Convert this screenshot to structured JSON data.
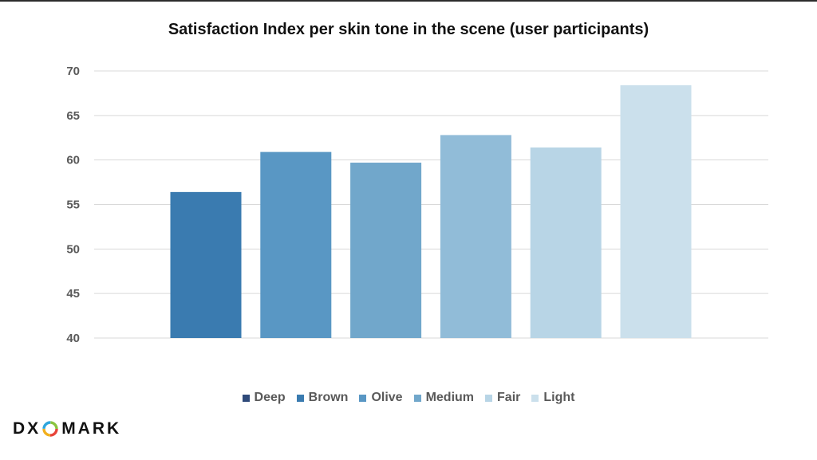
{
  "header": {
    "title": "Satisfaction Index per skin tone in the scene (user participants)"
  },
  "chart_data": {
    "type": "bar",
    "title": "Satisfaction Index per skin tone in the scene (user participants)",
    "xlabel": "",
    "ylabel": "",
    "categories": [
      "Deep",
      "Brown",
      "Olive",
      "Medium",
      "Fair",
      "Light"
    ],
    "values": [
      56.4,
      60.9,
      59.7,
      62.8,
      61.4,
      68.4
    ],
    "colors": [
      "#3a7bb0",
      "#5997c4",
      "#71a7cb",
      "#91bcd8",
      "#b8d5e6",
      "#cbe0ec"
    ],
    "ylim": [
      40,
      70
    ],
    "yticks": [
      40,
      45,
      50,
      55,
      60,
      65,
      70
    ],
    "grid": true,
    "legend_position": "bottom",
    "legend": [
      {
        "label": "Deep",
        "color": "#2f4a7a"
      },
      {
        "label": "Brown",
        "color": "#3a7bb0"
      },
      {
        "label": "Olive",
        "color": "#5997c4"
      },
      {
        "label": "Medium",
        "color": "#71a7cb"
      },
      {
        "label": "Fair",
        "color": "#b8d5e6"
      },
      {
        "label": "Light",
        "color": "#cbe0ec"
      }
    ]
  },
  "logo": {
    "left": "DX",
    "right": "MARK",
    "icon": "dxomark-ring-icon"
  }
}
